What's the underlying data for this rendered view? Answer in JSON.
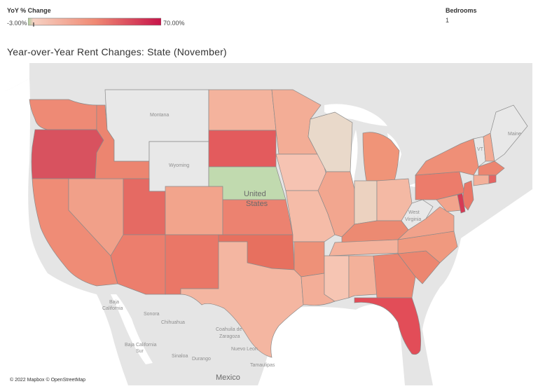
{
  "legend": {
    "title": "YoY % Change",
    "min_label": "-3.00%",
    "max_label": "70.00%",
    "colors": [
      "#a9cc9a",
      "#f6d1c3",
      "#f08a74",
      "#c7144a"
    ]
  },
  "filter": {
    "label": "Bedrooms",
    "value": "1"
  },
  "map": {
    "title": "Year-over-Year Rent Changes: State (November)",
    "attribution": "© 2022 Mapbox © OpenStreetMap",
    "labels": {
      "montana": "Montana",
      "wyoming": "Wyoming",
      "maine": "Maine",
      "vt": "VT",
      "west": "West",
      "virginia": "Virginia",
      "baja_california_1": "Baja",
      "baja_california_2": "California",
      "sonora": "Sonora",
      "chihuahua": "Chihuahua",
      "coahuila_1": "Coahuila de",
      "coahuila_2": "Zaragoza",
      "nuevo_leon": "Nuevo Leon",
      "baja_sur_1": "Baja California",
      "baja_sur_2": "Sur",
      "sinaloa": "Sinaloa",
      "durango": "Durango",
      "tamaulipas": "Tamaulipas",
      "mexico": "Mexico",
      "united": "United",
      "states": "States"
    },
    "state_colors": {
      "WA": "#ee8a75",
      "OR": "#d8525f",
      "CA": "#ef8c76",
      "NV": "#f1a089",
      "ID": "#ec8570",
      "MT": "#e8e8e8",
      "WY": "#e8e8e8",
      "UT": "#e56a63",
      "AZ": "#ec7e6d",
      "CO": "#f2a48c",
      "NM": "#ea7767",
      "ND": "#f4b39d",
      "SD": "#e35b5d",
      "NE": "#c1daaf",
      "KS": "#ec8270",
      "OK": "#e7705f",
      "TX": "#f4b6a1",
      "MN": "#f3ad96",
      "IA": "#f6c3b2",
      "MO": "#f5bca8",
      "AR": "#ee9178",
      "LA": "#f3ae98",
      "WI": "#e9d9ca",
      "IL": "#f2a68f",
      "MI": "#f09478",
      "IN": "#ecd2c0",
      "OH": "#f4b9a4",
      "KY": "#ec8a72",
      "TN": "#f4b29c",
      "MS": "#f6c5b3",
      "AL": "#f3b19a",
      "GA": "#ec8570",
      "FL": "#e24d58",
      "SC": "#ec8670",
      "NC": "#f0997f",
      "VA": "#f1a28b",
      "WV": "#e8e8e8",
      "PA": "#ec7c6b",
      "NY": "#ef8f77",
      "NJ": "#ea7667",
      "DE": "#d63a55",
      "MD": "#f2a48c",
      "VT": "#e8e8e8",
      "NH": "#f3ab94",
      "MA": "#ec8570",
      "CT": "#f3b09a",
      "RI": "#e56462",
      "ME": "#e8e8e8"
    }
  }
}
